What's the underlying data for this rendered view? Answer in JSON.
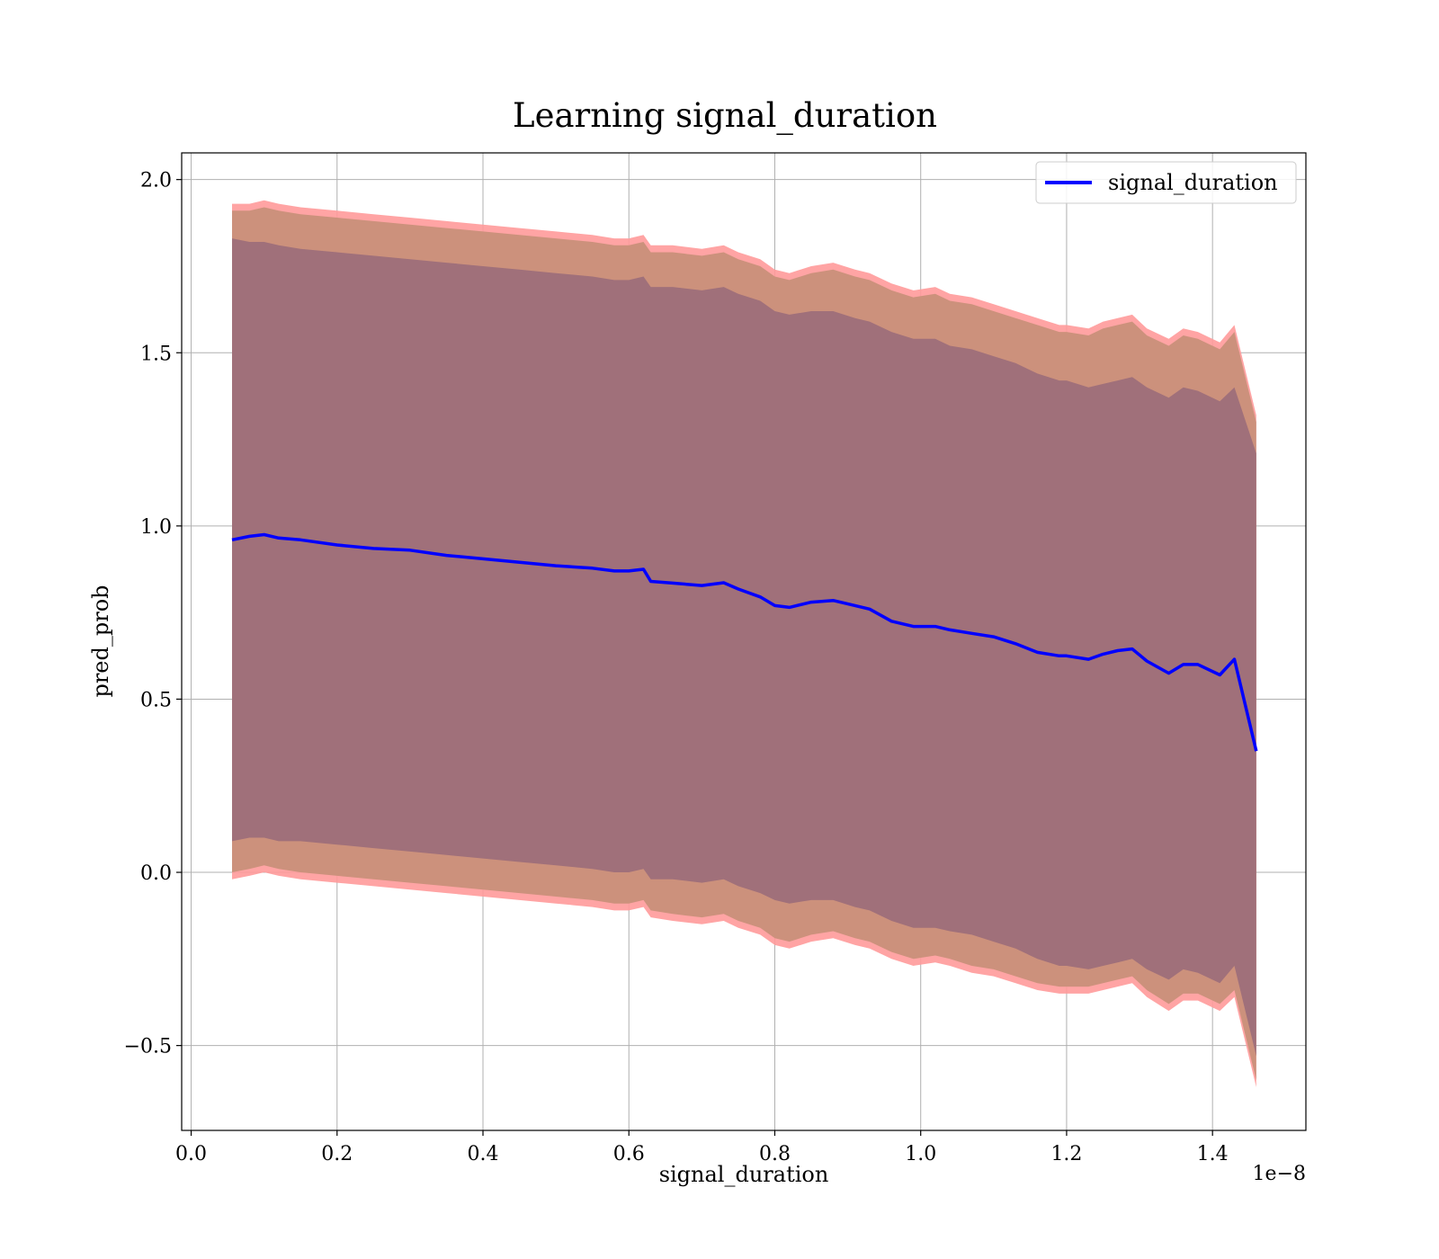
{
  "chart_data": {
    "type": "line",
    "title": "Learning signal_duration",
    "xlabel": "signal_duration",
    "ylabel": "pred_prob",
    "x_offset_label": "1e−8",
    "xlim": [
      -0.013,
      1.528
    ],
    "ylim": [
      -0.745,
      2.077
    ],
    "xticks": [
      0.0,
      0.2,
      0.4,
      0.6,
      0.8,
      1.0,
      1.2,
      1.4
    ],
    "xtick_labels": [
      "0.0",
      "0.2",
      "0.4",
      "0.6",
      "0.8",
      "1.0",
      "1.2",
      "1.4"
    ],
    "yticks": [
      -0.5,
      0.0,
      0.5,
      1.0,
      1.5,
      2.0
    ],
    "ytick_labels": [
      "−0.5",
      "0.0",
      "0.5",
      "1.0",
      "1.5",
      "2.0"
    ],
    "grid": true,
    "legend": {
      "position": "top-right",
      "entries": [
        "signal_duration"
      ]
    },
    "colors": {
      "line": "#0000ff",
      "band_outer": "#ff9a9a",
      "band_middle": "#c9907a",
      "band_inner": "#a0707a"
    },
    "series": [
      {
        "name": "signal_duration",
        "x": [
          0.056,
          0.08,
          0.1,
          0.12,
          0.15,
          0.2,
          0.25,
          0.3,
          0.35,
          0.4,
          0.45,
          0.5,
          0.55,
          0.58,
          0.6,
          0.62,
          0.63,
          0.66,
          0.7,
          0.73,
          0.75,
          0.78,
          0.8,
          0.82,
          0.85,
          0.88,
          0.91,
          0.93,
          0.96,
          0.99,
          1.02,
          1.04,
          1.07,
          1.1,
          1.13,
          1.16,
          1.19,
          1.2,
          1.23,
          1.25,
          1.27,
          1.29,
          1.31,
          1.34,
          1.36,
          1.38,
          1.41,
          1.43,
          1.46
        ],
        "y": [
          0.96,
          0.97,
          0.975,
          0.965,
          0.96,
          0.945,
          0.935,
          0.93,
          0.915,
          0.905,
          0.895,
          0.885,
          0.878,
          0.87,
          0.87,
          0.875,
          0.84,
          0.835,
          0.828,
          0.836,
          0.818,
          0.795,
          0.77,
          0.765,
          0.78,
          0.785,
          0.77,
          0.76,
          0.725,
          0.71,
          0.71,
          0.7,
          0.69,
          0.68,
          0.66,
          0.635,
          0.625,
          0.625,
          0.615,
          0.63,
          0.64,
          0.645,
          0.61,
          0.575,
          0.6,
          0.6,
          0.57,
          0.615,
          0.35
        ],
        "band_inner_upper": [
          1.83,
          1.82,
          1.82,
          1.81,
          1.8,
          1.79,
          1.78,
          1.77,
          1.76,
          1.75,
          1.74,
          1.73,
          1.72,
          1.71,
          1.71,
          1.72,
          1.69,
          1.69,
          1.68,
          1.69,
          1.67,
          1.65,
          1.62,
          1.61,
          1.62,
          1.62,
          1.6,
          1.59,
          1.56,
          1.54,
          1.54,
          1.52,
          1.51,
          1.49,
          1.47,
          1.44,
          1.42,
          1.42,
          1.4,
          1.41,
          1.42,
          1.43,
          1.4,
          1.37,
          1.4,
          1.39,
          1.36,
          1.4,
          1.21
        ],
        "band_inner_lower": [
          0.09,
          0.1,
          0.1,
          0.09,
          0.09,
          0.08,
          0.07,
          0.06,
          0.05,
          0.04,
          0.03,
          0.02,
          0.01,
          0.0,
          0.0,
          0.01,
          -0.02,
          -0.02,
          -0.03,
          -0.02,
          -0.04,
          -0.06,
          -0.08,
          -0.09,
          -0.08,
          -0.08,
          -0.1,
          -0.11,
          -0.14,
          -0.16,
          -0.16,
          -0.17,
          -0.18,
          -0.2,
          -0.22,
          -0.25,
          -0.27,
          -0.27,
          -0.28,
          -0.27,
          -0.26,
          -0.25,
          -0.28,
          -0.31,
          -0.28,
          -0.29,
          -0.32,
          -0.27,
          -0.53
        ],
        "band_middle_upper": [
          1.91,
          1.91,
          1.92,
          1.91,
          1.9,
          1.89,
          1.88,
          1.87,
          1.86,
          1.85,
          1.84,
          1.83,
          1.82,
          1.81,
          1.81,
          1.82,
          1.79,
          1.79,
          1.78,
          1.79,
          1.77,
          1.75,
          1.72,
          1.71,
          1.73,
          1.74,
          1.72,
          1.71,
          1.68,
          1.66,
          1.67,
          1.65,
          1.64,
          1.62,
          1.6,
          1.58,
          1.56,
          1.56,
          1.55,
          1.57,
          1.58,
          1.59,
          1.55,
          1.52,
          1.55,
          1.54,
          1.51,
          1.56,
          1.3
        ],
        "band_middle_lower": [
          0.0,
          0.01,
          0.02,
          0.01,
          0.0,
          -0.01,
          -0.02,
          -0.03,
          -0.04,
          -0.05,
          -0.06,
          -0.07,
          -0.08,
          -0.09,
          -0.09,
          -0.08,
          -0.11,
          -0.12,
          -0.13,
          -0.12,
          -0.14,
          -0.16,
          -0.19,
          -0.2,
          -0.18,
          -0.17,
          -0.19,
          -0.2,
          -0.23,
          -0.25,
          -0.24,
          -0.25,
          -0.27,
          -0.28,
          -0.3,
          -0.32,
          -0.33,
          -0.33,
          -0.33,
          -0.32,
          -0.31,
          -0.3,
          -0.34,
          -0.38,
          -0.35,
          -0.35,
          -0.38,
          -0.34,
          -0.6
        ],
        "band_outer_upper": [
          1.93,
          1.93,
          1.94,
          1.93,
          1.92,
          1.91,
          1.9,
          1.89,
          1.88,
          1.87,
          1.86,
          1.85,
          1.84,
          1.83,
          1.83,
          1.84,
          1.81,
          1.81,
          1.8,
          1.81,
          1.79,
          1.77,
          1.74,
          1.73,
          1.75,
          1.76,
          1.74,
          1.73,
          1.7,
          1.68,
          1.69,
          1.67,
          1.66,
          1.64,
          1.62,
          1.6,
          1.58,
          1.58,
          1.57,
          1.59,
          1.6,
          1.61,
          1.57,
          1.54,
          1.57,
          1.56,
          1.53,
          1.58,
          1.32
        ],
        "band_outer_lower": [
          -0.02,
          -0.01,
          0.0,
          -0.01,
          -0.02,
          -0.03,
          -0.04,
          -0.05,
          -0.06,
          -0.07,
          -0.08,
          -0.09,
          -0.1,
          -0.11,
          -0.11,
          -0.1,
          -0.13,
          -0.14,
          -0.15,
          -0.14,
          -0.16,
          -0.18,
          -0.21,
          -0.22,
          -0.2,
          -0.19,
          -0.21,
          -0.22,
          -0.25,
          -0.27,
          -0.26,
          -0.27,
          -0.29,
          -0.3,
          -0.32,
          -0.34,
          -0.35,
          -0.35,
          -0.35,
          -0.34,
          -0.33,
          -0.32,
          -0.36,
          -0.4,
          -0.37,
          -0.37,
          -0.4,
          -0.36,
          -0.62
        ]
      }
    ]
  }
}
